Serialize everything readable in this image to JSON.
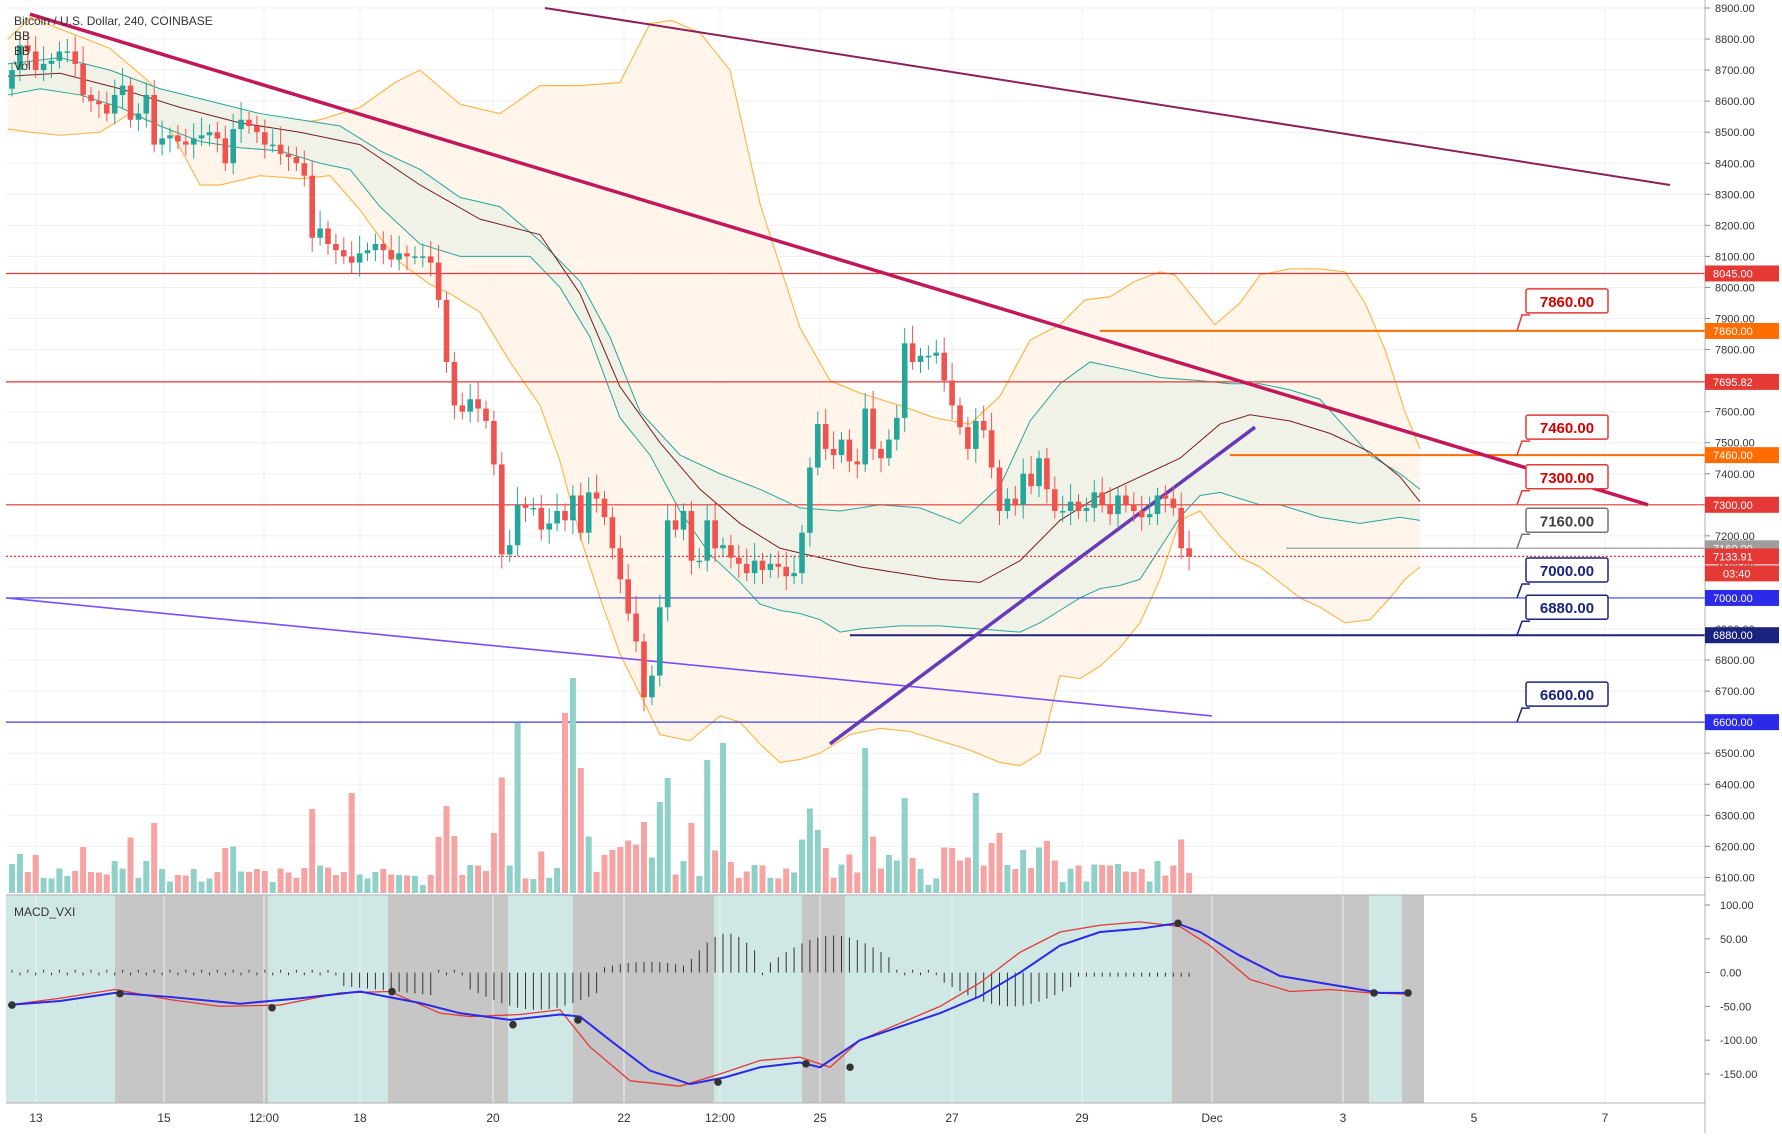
{
  "legend": {
    "title": "Bitcoin / U.S. Dollar, 240, COINBASE",
    "line2": "BB",
    "line3": "BB",
    "line4": "Vol"
  },
  "macd_label": "MACD_VXI",
  "colors": {
    "up": "#26a69a",
    "down": "#ef5350",
    "vol_up": "#8fd0c8",
    "vol_down": "#f5a3a3",
    "resistance": "#e53935",
    "support": "#3f3fd6",
    "trend_main": "#c2185b",
    "trend_top": "#8e1e5a",
    "trend_purple": "#673ab7",
    "orange": "#ff6d00",
    "bb_outer": "#ffb74d",
    "bb_inner": "#26a69a",
    "basis": "#7b1e1e",
    "macd_fast": "#2a2ae8",
    "macd_slow": "#e53935",
    "bg_teal": "#cfe8e6",
    "bg_grey": "#c6c6c6"
  },
  "chart_data": [
    {
      "type": "candlestick",
      "title": "Bitcoin / U.S. Dollar, 240, COINBASE",
      "y_axis_ticks": [
        "8900.00",
        "8800.00",
        "8700.00",
        "8600.00",
        "8500.00",
        "8400.00",
        "8300.00",
        "8200.00",
        "8100.00",
        "8000.00",
        "7900.00",
        "7800.00",
        "7700.00",
        "7600.00",
        "7500.00",
        "7400.00",
        "7300.00",
        "7200.00",
        "7100.00",
        "7000.00",
        "6900.00",
        "6800.00",
        "6700.00",
        "6600.00",
        "6500.00",
        "6400.00",
        "6300.00",
        "6200.00",
        "6100.00"
      ],
      "ylim": [
        6050,
        8950
      ],
      "x_axis_ticks": [
        "13",
        "15",
        "12:00",
        "18",
        "20",
        "22",
        "12:00",
        "25",
        "27",
        "29",
        "Dec",
        "3",
        "5",
        "7"
      ],
      "horizontal_levels": [
        {
          "label": "8045.00",
          "value": 8045,
          "kind": "resistance"
        },
        {
          "label": "7860.00",
          "value": 7860,
          "kind": "orange"
        },
        {
          "label": "7695.82",
          "value": 7695.82,
          "kind": "resistance"
        },
        {
          "label": "7460.00",
          "value": 7460,
          "kind": "orange"
        },
        {
          "label": "7300.00",
          "value": 7300,
          "kind": "resistance"
        },
        {
          "label": "7160.00",
          "value": 7160,
          "kind": "grey"
        },
        {
          "label": "7133.91",
          "value": 7133.91,
          "kind": "price"
        },
        {
          "label": "7000.00",
          "value": 7000,
          "kind": "support"
        },
        {
          "label": "6880.00",
          "value": 6880,
          "kind": "support_dark"
        },
        {
          "label": "6600.00",
          "value": 6600,
          "kind": "support"
        }
      ],
      "price_countdown": "03:40",
      "callouts": [
        {
          "label": "7860.00",
          "value": 7860,
          "kind": "red"
        },
        {
          "label": "7460.00",
          "value": 7460,
          "kind": "red"
        },
        {
          "label": "7300.00",
          "value": 7300,
          "kind": "red"
        },
        {
          "label": "7160.00",
          "value": 7160,
          "kind": "grey"
        },
        {
          "label": "7000.00",
          "value": 7000,
          "kind": "blue"
        },
        {
          "label": "6880.00",
          "value": 6880,
          "kind": "blue"
        },
        {
          "label": "6600.00",
          "value": 6600,
          "kind": "blue"
        }
      ],
      "candle_closes": [
        8700,
        8780,
        8760,
        8700,
        8720,
        8730,
        8760,
        8760,
        8720,
        8620,
        8600,
        8590,
        8560,
        8620,
        8650,
        8540,
        8560,
        8620,
        8460,
        8480,
        8490,
        8470,
        8460,
        8480,
        8490,
        8500,
        8480,
        8400,
        8510,
        8540,
        8520,
        8500,
        8460,
        8460,
        8430,
        8420,
        8400,
        8360,
        8160,
        8190,
        8140,
        8120,
        8100,
        8080,
        8110,
        8120,
        8140,
        8120,
        8090,
        8110,
        8100,
        8100,
        8100,
        8080,
        7960,
        7760,
        7620,
        7600,
        7640,
        7610,
        7570,
        7430,
        7140,
        7170,
        7300,
        7290,
        7290,
        7220,
        7240,
        7280,
        7250,
        7330,
        7210,
        7340,
        7320,
        7260,
        7160,
        7060,
        6950,
        6860,
        6680,
        6750,
        6970,
        7250,
        7220,
        7280,
        7120,
        7120,
        7250,
        7160,
        7170,
        7130,
        7110,
        7080,
        7120,
        7090,
        7110,
        7100,
        7070,
        7080,
        7210,
        7420,
        7560,
        7480,
        7460,
        7510,
        7440,
        7430,
        7610,
        7480,
        7450,
        7510,
        7580,
        7820,
        7760,
        7780,
        7780,
        7790,
        7700,
        7620,
        7550,
        7480,
        7570,
        7540,
        7420,
        7280,
        7320,
        7300,
        7400,
        7360,
        7450,
        7350,
        7280,
        7280,
        7310,
        7280,
        7290,
        7340,
        7300,
        7270,
        7330,
        7300,
        7280,
        7260,
        7270,
        7330,
        7320,
        7290,
        7160,
        7134
      ],
      "volume_note": "volume bars shown at bottom of price pane",
      "macd_ticks": [
        "100.00",
        "50.00",
        "0.00",
        "-50.00",
        "-100.00",
        "-150.00"
      ],
      "macd_ylim": [
        -190,
        110
      ]
    }
  ]
}
